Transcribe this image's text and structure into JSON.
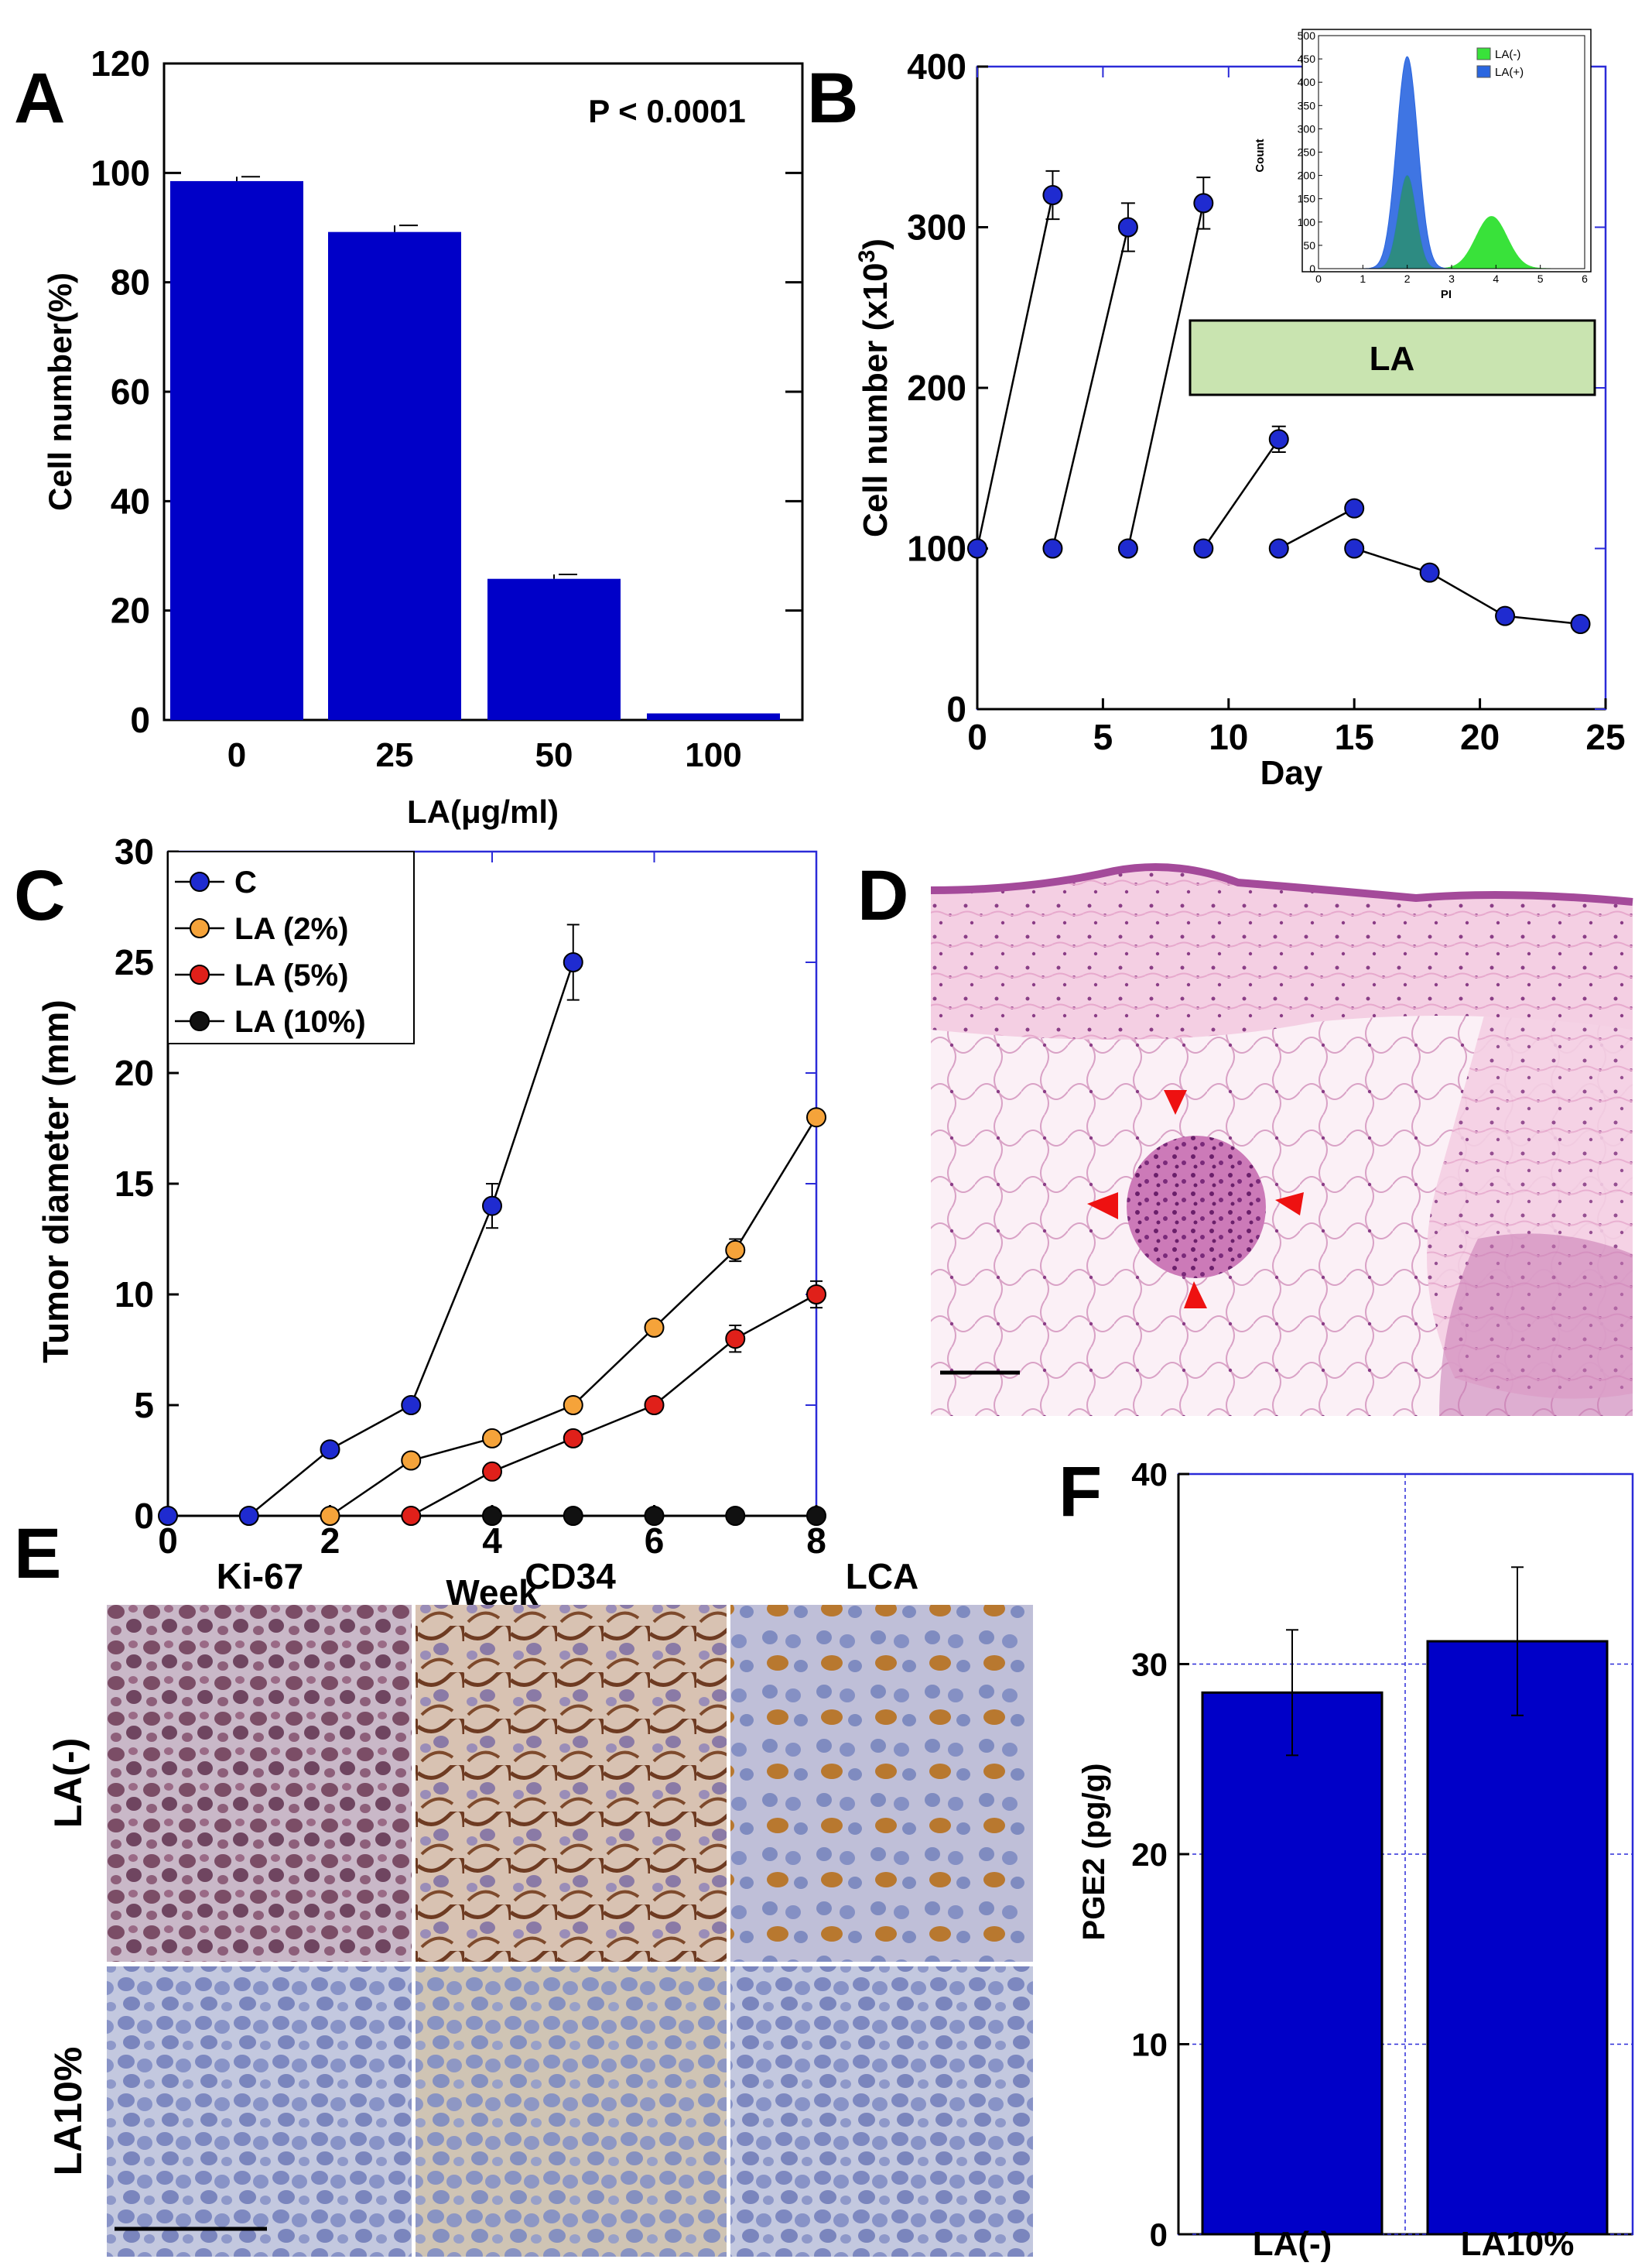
{
  "colors": {
    "bar_blue": "#0000c8",
    "axis_blue": "#2b2bd8",
    "marker_blue": "#1f2bd0",
    "orange": "#f5a33a",
    "red": "#e0201a",
    "black": "#111111",
    "la_box_fill": "#c9e4b0",
    "inset_green": "#39e23a",
    "inset_blue": "#2a66e0",
    "inset_overlap": "#2e8f74",
    "he_pink": "#f1c4de",
    "he_purple": "#a44a9a",
    "arrow_red": "#ee1111",
    "ihc_brown": "#7a4a3a",
    "ihc_blue": "#8a95c6"
  },
  "panels": {
    "a": "A",
    "b": "B",
    "c": "C",
    "d": "D",
    "e": "E",
    "f": "F"
  },
  "chart_data": [
    {
      "id": "A",
      "type": "bar",
      "categories": [
        "0",
        "25",
        "50",
        "100"
      ],
      "values": [
        98.5,
        89.2,
        25.8,
        1.2
      ],
      "errors": [
        0.8,
        1.2,
        0.8,
        0
      ],
      "ylim": [
        0,
        120
      ],
      "yticks": [
        "0",
        "20",
        "40",
        "60",
        "80",
        "100",
        "120"
      ],
      "ylabel": "Cell number(%)",
      "xlabel": "LA(μg/ml)",
      "annotation": "P < 0.0001"
    },
    {
      "id": "B",
      "type": "line",
      "xlim": [
        0,
        25
      ],
      "ylim": [
        0,
        400
      ],
      "xticks": [
        "0",
        "5",
        "10",
        "15",
        "20",
        "25"
      ],
      "yticks": [
        "0",
        "100",
        "200",
        "300",
        "400"
      ],
      "xlabel": "Day",
      "ylabel_main": "Cell number (x10",
      "ylabel_sup": "3",
      "ylabel_end": ")",
      "segments": [
        [
          [
            0,
            100
          ],
          [
            3,
            320
          ]
        ],
        [
          [
            3,
            100
          ],
          [
            6,
            300
          ]
        ],
        [
          [
            6,
            100
          ],
          [
            9,
            315
          ]
        ],
        [
          [
            9,
            100
          ],
          [
            12,
            168
          ]
        ],
        [
          [
            12,
            100
          ],
          [
            15,
            125
          ]
        ],
        [
          [
            15,
            100
          ],
          [
            18,
            85
          ],
          [
            21,
            58
          ],
          [
            24,
            53
          ]
        ]
      ],
      "errors": [
        [
          3,
          320,
          15
        ],
        [
          6,
          300,
          15
        ],
        [
          9,
          315,
          16
        ],
        [
          12,
          168,
          8
        ]
      ],
      "la_label": "LA",
      "inset": {
        "xlabel": "PI",
        "ylabel": "Count",
        "xticks": [
          "0",
          "1",
          "2",
          "3",
          "4",
          "5",
          "6"
        ],
        "yticks": [
          "0",
          "50",
          "100",
          "150",
          "200",
          "250",
          "300",
          "350",
          "400",
          "450",
          "500"
        ],
        "legend": [
          "LA(-)",
          "LA(+)"
        ],
        "series": [
          {
            "name": "LA(-)",
            "peaks": [
              {
                "mu": 2.0,
                "sigma": 0.2,
                "amp": 200
              },
              {
                "mu": 3.9,
                "sigma": 0.35,
                "amp": 112
              }
            ]
          },
          {
            "name": "LA(+)",
            "peaks": [
              {
                "mu": 2.0,
                "sigma": 0.24,
                "amp": 455
              }
            ]
          }
        ]
      }
    },
    {
      "id": "C",
      "type": "line",
      "xlim": [
        0,
        8
      ],
      "ylim": [
        0,
        30
      ],
      "xticks": [
        "0",
        "2",
        "4",
        "6",
        "8"
      ],
      "yticks": [
        "0",
        "5",
        "10",
        "15",
        "20",
        "25",
        "30"
      ],
      "xlabel": "Week",
      "ylabel": "Tumor diameter (mm)",
      "series": [
        {
          "name": "C",
          "x": [
            0,
            1,
            2,
            3,
            4,
            5
          ],
          "y": [
            0,
            0,
            3,
            5,
            14,
            25
          ],
          "err": [
            0,
            0,
            0,
            0,
            1,
            1.7
          ]
        },
        {
          "name": "LA (2%)",
          "x": [
            2,
            3,
            4,
            5,
            6,
            7,
            8
          ],
          "y": [
            0,
            2.5,
            3.5,
            5,
            8.5,
            12,
            18
          ],
          "err": [
            0,
            0,
            0,
            0,
            0,
            0.5,
            0
          ]
        },
        {
          "name": "LA (5%)",
          "x": [
            3,
            4,
            5,
            6,
            7,
            8
          ],
          "y": [
            0,
            2,
            3.5,
            5,
            8,
            10
          ],
          "err": [
            0,
            0,
            0,
            0,
            0.6,
            0.6
          ]
        },
        {
          "name": "LA (10%)",
          "x": [
            4,
            5,
            6,
            7,
            8
          ],
          "y": [
            0,
            0,
            0,
            0,
            0
          ],
          "err": [
            0,
            0,
            0,
            0,
            0
          ]
        }
      ]
    },
    {
      "id": "F",
      "type": "bar",
      "categories": [
        "LA(-)",
        "LA10%"
      ],
      "values": [
        28.5,
        31.2
      ],
      "errors": [
        3.3,
        3.9
      ],
      "ylim": [
        0,
        40
      ],
      "yticks": [
        "0",
        "10",
        "20",
        "30",
        "40"
      ],
      "ylabel": "PGE2 (pg/g)"
    }
  ],
  "panel_e": {
    "columns": [
      "Ki-67",
      "CD34",
      "LCA"
    ],
    "rows": [
      "LA(-)",
      "LA10%"
    ]
  }
}
